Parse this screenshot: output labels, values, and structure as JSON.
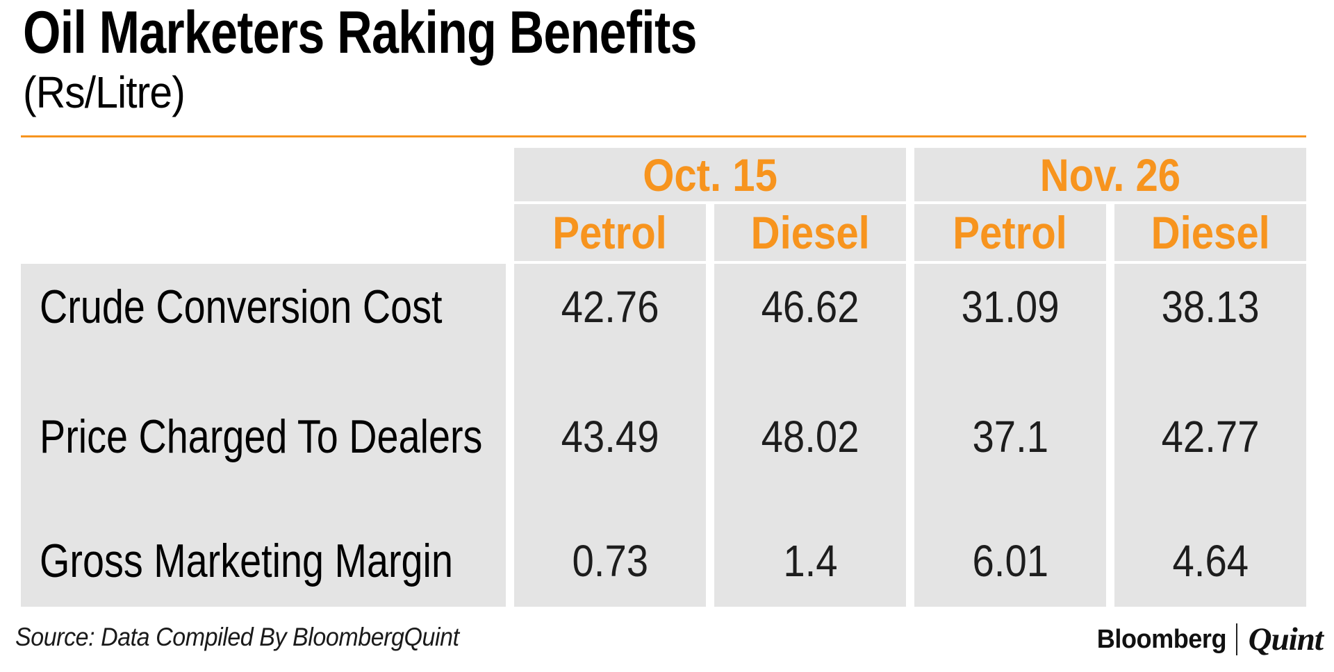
{
  "title": "Oil Marketers Raking Benefits",
  "subtitle": "(Rs/Litre)",
  "source": "Source: Data Compiled By BloombergQuint",
  "logo": {
    "bloomberg": "Bloomberg",
    "quint": "Quint"
  },
  "colors": {
    "accent": "#F7941E",
    "cell_bg": "#E4E4E4",
    "number_text": "#1D1D1D"
  },
  "chart_data": {
    "type": "table",
    "title": "Oil Marketers Raking Benefits",
    "unit": "Rs/Litre",
    "column_groups": [
      "Oct. 15",
      "Nov. 26"
    ],
    "sub_columns": [
      "Petrol",
      "Diesel",
      "Petrol",
      "Diesel"
    ],
    "rows": [
      {
        "label": "Crude Conversion Cost",
        "values": [
          42.76,
          46.62,
          31.09,
          38.13
        ]
      },
      {
        "label": "Price Charged To Dealers",
        "values": [
          43.49,
          48.02,
          37.1,
          42.77
        ]
      },
      {
        "label": "Gross Marketing Margin",
        "values": [
          0.73,
          1.4,
          6.01,
          4.64
        ]
      }
    ]
  }
}
